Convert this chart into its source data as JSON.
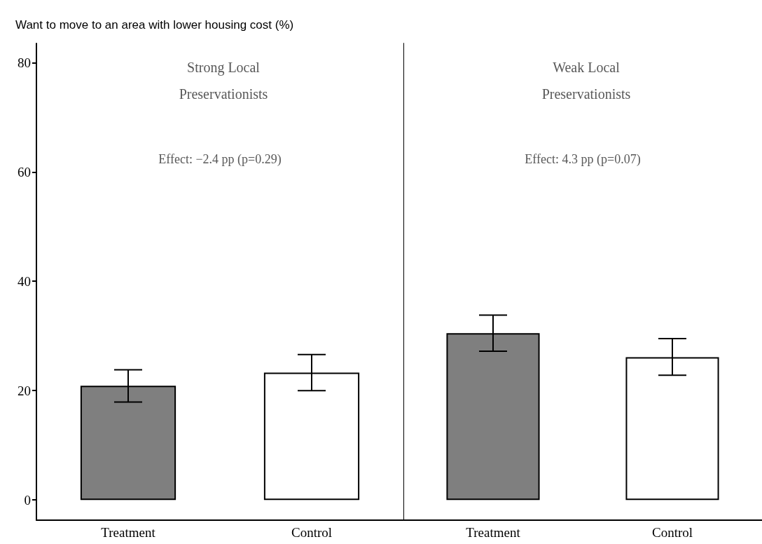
{
  "chart_data": [
    {
      "type": "bar",
      "title": "Strong Local\nPreservationists",
      "ylabel": "Want to move to an area with lower housing cost (%)",
      "categories": [
        "Treatment",
        "Control"
      ],
      "values": [
        20.9,
        23.3
      ],
      "colors": [
        "#7f7f7f",
        "#ffffff"
      ],
      "errors": [
        [
          17.9,
          23.8
        ],
        [
          20.0,
          26.6
        ]
      ],
      "ylim": [
        -3.7,
        83.5
      ],
      "yticks": [
        0,
        20,
        40,
        60,
        80
      ],
      "grid": false,
      "annotations": [
        "Effect: −2.4 pp (p=0.29)"
      ]
    },
    {
      "type": "bar",
      "title": "Weak Local\nPreservationists",
      "categories": [
        "Treatment",
        "Control"
      ],
      "values": [
        30.5,
        26.1
      ],
      "colors": [
        "#7f7f7f",
        "#ffffff"
      ],
      "errors": [
        [
          27.2,
          33.8
        ],
        [
          22.8,
          29.5
        ]
      ],
      "ylim": [
        -3.7,
        83.5
      ],
      "yticks": [
        0,
        20,
        40,
        60,
        80
      ],
      "grid": false,
      "tick_labels": "x",
      "annotations": [
        "Effect: 4.3 pp (p=0.07)"
      ]
    }
  ]
}
